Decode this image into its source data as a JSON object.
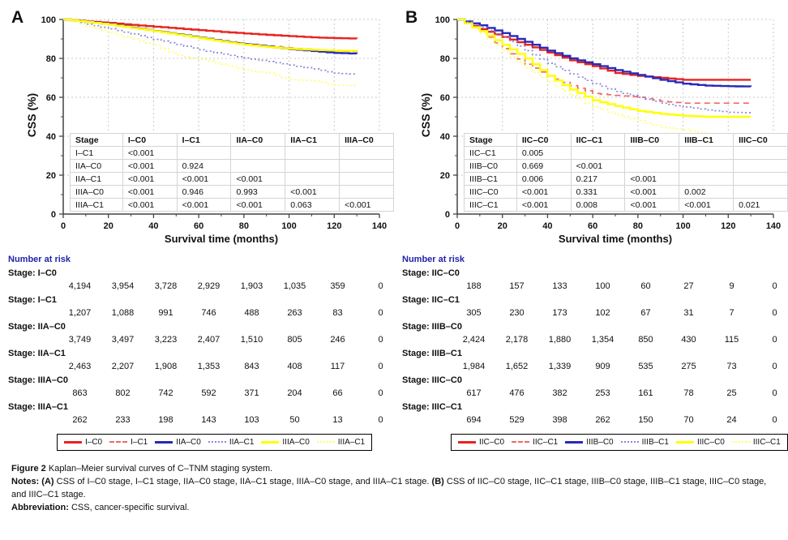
{
  "figure": {
    "caption_label": "Figure 2",
    "caption_text": "Kaplan–Meier survival curves of C–TNM staging system.",
    "notes_label": "Notes:",
    "note_a_label": "(A)",
    "note_a_text": "CSS of I–C0 stage, I–C1 stage, IIA–C0 stage, IIA–C1 stage, IIIA–C0 stage, and IIIA–C1 stage.",
    "note_b_label": "(B)",
    "note_b_text": "CSS of IIC–C0 stage, IIC–C1 stage, IIIB–C0 stage, IIIB–C1 stage, IIIC–C0 stage, and IIIC–C1 stage.",
    "abbrev_label": "Abbreviation:",
    "abbrev_text": "CSS, cancer-specific survival."
  },
  "colors": {
    "red_solid": "#e8231f",
    "red_dashed": "#f06a64",
    "blue_solid": "#2929b8",
    "blue_dotted": "#8787de",
    "yellow_solid": "#ffff00",
    "yellow_dotted": "#ffff66",
    "grid": "#c9c9c9",
    "axis": "#444444",
    "risk_title": "#2222aa",
    "table_border": "#d4d4d4"
  },
  "chart_data": [
    {
      "panel_label": "A",
      "type": "line",
      "subtype": "kaplan-meier-step",
      "xlabel": "Survival time (months)",
      "ylabel": "CSS (%)",
      "xlim": [
        0,
        140
      ],
      "ylim": [
        0,
        100
      ],
      "xticks": [
        0,
        20,
        40,
        60,
        80,
        100,
        120,
        140
      ],
      "yticks": [
        0,
        20,
        40,
        60,
        80,
        100
      ],
      "grid": "dotted",
      "legend_position": "bottom",
      "x": [
        0,
        10,
        20,
        30,
        40,
        50,
        60,
        70,
        80,
        90,
        100,
        110,
        120,
        130
      ],
      "series": [
        {
          "name": "I–C0",
          "style": "solid",
          "color": "#e8231f",
          "values": [
            100,
            99.0,
            98.2,
            97.2,
            96.3,
            95.4,
            94.5,
            93.6,
            92.8,
            92.1,
            91.4,
            90.8,
            90.4,
            90.2
          ]
        },
        {
          "name": "I–C1",
          "style": "dashed",
          "color": "#f06a64",
          "values": [
            100,
            98.6,
            97.2,
            95.6,
            94.1,
            92.5,
            90.8,
            89.1,
            87.6,
            86.4,
            85.4,
            84.5,
            83.8,
            83.5
          ]
        },
        {
          "name": "IIA–C0",
          "style": "solid",
          "color": "#2929b8",
          "values": [
            100,
            98.8,
            97.6,
            95.8,
            94.1,
            92.4,
            90.6,
            88.8,
            87.2,
            86.0,
            84.8,
            83.8,
            82.8,
            82.4
          ]
        },
        {
          "name": "IIA–C1",
          "style": "dotted",
          "color": "#8787de",
          "values": [
            100,
            97.6,
            95.2,
            92.6,
            89.8,
            87.2,
            84.4,
            82.2,
            80.2,
            78.4,
            76.6,
            74.6,
            72.4,
            71.8
          ]
        },
        {
          "name": "IIIA–C0",
          "style": "solid",
          "color": "#ffff00",
          "values": [
            100,
            98.7,
            97.4,
            95.6,
            94.0,
            92.2,
            90.4,
            88.6,
            87.0,
            85.8,
            85.0,
            84.4,
            84.0,
            83.8
          ]
        },
        {
          "name": "IIIA–C1",
          "style": "dotted",
          "color": "#ffff66",
          "values": [
            100,
            96.6,
            93.2,
            90.0,
            86.8,
            81.5,
            79.5,
            77.0,
            74.0,
            72.5,
            69.0,
            68.5,
            66.2,
            66.0
          ]
        }
      ],
      "pvalue_table": {
        "headers": [
          "Stage",
          "I–C0",
          "I–C1",
          "IIA–C0",
          "IIA–C1",
          "IIIA–C0"
        ],
        "rows": [
          [
            "I–C1",
            "<0.001",
            "",
            "",
            "",
            ""
          ],
          [
            "IIA–C0",
            "<0.001",
            "0.924",
            "",
            "",
            ""
          ],
          [
            "IIA–C1",
            "<0.001",
            "<0.001",
            "<0.001",
            "",
            ""
          ],
          [
            "IIIA–C0",
            "<0.001",
            "0.946",
            "0.993",
            "<0.001",
            ""
          ],
          [
            "IIIA–C1",
            "<0.001",
            "<0.001",
            "<0.001",
            "0.063",
            "<0.001"
          ]
        ]
      },
      "number_at_risk": {
        "title": "Number at risk",
        "time_points": [
          0,
          20,
          40,
          60,
          80,
          100,
          120,
          140
        ],
        "groups": [
          {
            "label": "Stage: I–C0",
            "counts": [
              "4,194",
              "3,954",
              "3,728",
              "2,929",
              "1,903",
              "1,035",
              "359",
              "0"
            ]
          },
          {
            "label": "Stage: I–C1",
            "counts": [
              "1,207",
              "1,088",
              "991",
              "746",
              "488",
              "263",
              "83",
              "0"
            ]
          },
          {
            "label": "Stage: IIA–C0",
            "counts": [
              "3,749",
              "3,497",
              "3,223",
              "2,407",
              "1,510",
              "805",
              "246",
              "0"
            ]
          },
          {
            "label": "Stage: IIA–C1",
            "counts": [
              "2,463",
              "2,207",
              "1,908",
              "1,353",
              "843",
              "408",
              "117",
              "0"
            ]
          },
          {
            "label": "Stage: IIIA–C0",
            "counts": [
              "863",
              "802",
              "742",
              "592",
              "371",
              "204",
              "66",
              "0"
            ]
          },
          {
            "label": "Stage: IIIA–C1",
            "counts": [
              "262",
              "233",
              "198",
              "143",
              "103",
              "50",
              "13",
              "0"
            ]
          }
        ]
      }
    },
    {
      "panel_label": "B",
      "type": "line",
      "subtype": "kaplan-meier-step",
      "xlabel": "Survival time (months)",
      "ylabel": "CSS (%)",
      "xlim": [
        0,
        140
      ],
      "ylim": [
        0,
        100
      ],
      "xticks": [
        0,
        20,
        40,
        60,
        80,
        100,
        120,
        140
      ],
      "yticks": [
        0,
        20,
        40,
        60,
        80,
        100
      ],
      "grid": "dotted",
      "legend_position": "bottom",
      "x": [
        0,
        10,
        20,
        30,
        40,
        50,
        60,
        70,
        80,
        90,
        100,
        110,
        120,
        130
      ],
      "series": [
        {
          "name": "IIC–C0",
          "style": "solid",
          "color": "#e8231f",
          "values": [
            100,
            95.0,
            91.0,
            87.0,
            83.0,
            79.0,
            76.0,
            72.5,
            71.0,
            70.0,
            69.0,
            69.0,
            69.0,
            69.0
          ]
        },
        {
          "name": "IIC–C1",
          "style": "dashed",
          "color": "#f06a64",
          "values": [
            100,
            94.0,
            85.0,
            77.0,
            71.0,
            66.0,
            62.0,
            61.0,
            60.0,
            58.0,
            57.0,
            57.0,
            57.0,
            57.0
          ]
        },
        {
          "name": "IIIB–C0",
          "style": "solid",
          "color": "#2929b8",
          "values": [
            100,
            97.0,
            93.0,
            88.5,
            84.0,
            80.0,
            77.0,
            74.0,
            71.5,
            69.0,
            67.0,
            66.0,
            65.7,
            65.5
          ]
        },
        {
          "name": "IIIB–C1",
          "style": "dotted",
          "color": "#8787de",
          "values": [
            100,
            96.0,
            91.0,
            84.0,
            77.5,
            72.0,
            67.0,
            63.0,
            60.0,
            57.0,
            55.0,
            53.5,
            52.3,
            52.0
          ]
        },
        {
          "name": "IIIC–C0",
          "style": "solid",
          "color": "#ffff00",
          "values": [
            100,
            94.0,
            87.0,
            80.0,
            71.0,
            64.0,
            58.5,
            55.5,
            53.0,
            51.5,
            50.5,
            50.0,
            50.0,
            50.0
          ]
        },
        {
          "name": "IIIC–C1",
          "style": "dotted",
          "color": "#ffff66",
          "values": [
            100,
            93.0,
            84.0,
            75.0,
            68.0,
            61.0,
            55.0,
            51.0,
            48.0,
            44.5,
            43.5,
            41.0,
            38.0,
            37.0
          ]
        }
      ],
      "pvalue_table": {
        "headers": [
          "Stage",
          "IIC–C0",
          "IIC–C1",
          "IIIB–C0",
          "IIIB–C1",
          "IIIC–C0"
        ],
        "rows": [
          [
            "IIC–C1",
            "0.005",
            "",
            "",
            "",
            ""
          ],
          [
            "IIIB–C0",
            "0.669",
            "<0.001",
            "",
            "",
            ""
          ],
          [
            "IIIB–C1",
            "0.006",
            "0.217",
            "<0.001",
            "",
            ""
          ],
          [
            "IIIC–C0",
            "<0.001",
            "0.331",
            "<0.001",
            "0.002",
            ""
          ],
          [
            "IIIC–C1",
            "<0.001",
            "0.008",
            "<0.001",
            "<0.001",
            "0.021"
          ]
        ]
      },
      "number_at_risk": {
        "title": "Number at risk",
        "time_points": [
          0,
          20,
          40,
          60,
          80,
          100,
          120,
          140
        ],
        "groups": [
          {
            "label": "Stage: IIC–C0",
            "counts": [
              "188",
              "157",
              "133",
              "100",
              "60",
              "27",
              "9",
              "0"
            ]
          },
          {
            "label": "Stage: IIC–C1",
            "counts": [
              "305",
              "230",
              "173",
              "102",
              "67",
              "31",
              "7",
              "0"
            ]
          },
          {
            "label": "Stage: IIIB–C0",
            "counts": [
              "2,424",
              "2,178",
              "1,880",
              "1,354",
              "850",
              "430",
              "115",
              "0"
            ]
          },
          {
            "label": "Stage: IIIB–C1",
            "counts": [
              "1,984",
              "1,652",
              "1,339",
              "909",
              "535",
              "275",
              "73",
              "0"
            ]
          },
          {
            "label": "Stage: IIIC–C0",
            "counts": [
              "617",
              "476",
              "382",
              "253",
              "161",
              "78",
              "25",
              "0"
            ]
          },
          {
            "label": "Stage: IIIC–C1",
            "counts": [
              "694",
              "529",
              "398",
              "262",
              "150",
              "70",
              "24",
              "0"
            ]
          }
        ]
      }
    }
  ]
}
